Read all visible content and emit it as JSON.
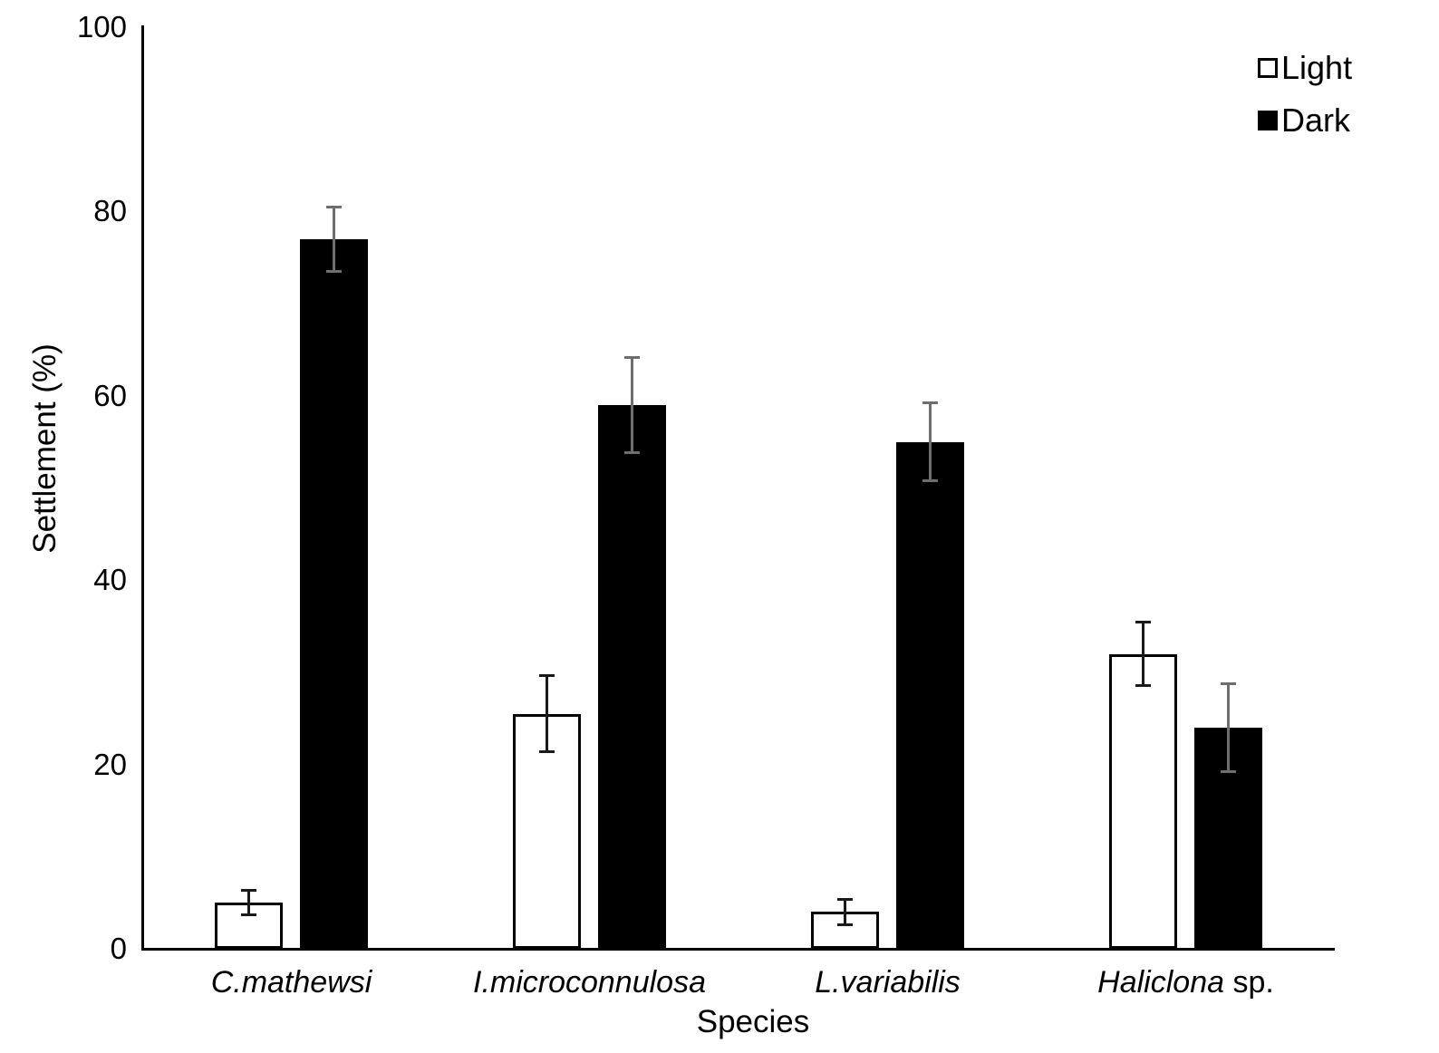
{
  "chart_data": {
    "type": "bar",
    "title": "",
    "xlabel": "Species",
    "ylabel": "Settlement (%)",
    "ylim": [
      0,
      100
    ],
    "yticks": [
      0,
      20,
      40,
      60,
      80,
      100
    ],
    "grid": false,
    "legend_position": "top-right",
    "legend_entries": [
      "Light",
      "Dark"
    ],
    "categories": [
      {
        "name": "C.mathewsi",
        "suffix": ""
      },
      {
        "name": "I.microconnulosa",
        "suffix": ""
      },
      {
        "name": "L.variabilis",
        "suffix": ""
      },
      {
        "name": "Haliclona",
        "suffix": " sp."
      }
    ],
    "series": [
      {
        "name": "Light",
        "fill": "#ffffff",
        "border": "#000000",
        "error_color": "#1a1a1a",
        "values": [
          5,
          25.5,
          4,
          32
        ],
        "errors": [
          1.3,
          4.1,
          1.4,
          3.4
        ]
      },
      {
        "name": "Dark",
        "fill": "#000000",
        "border": "#000000",
        "error_color": "#6e6e6e",
        "values": [
          77,
          59,
          55,
          24
        ],
        "errors": [
          3.5,
          5.2,
          4.2,
          4.8
        ]
      }
    ],
    "colors": {
      "background": "#ffffff",
      "axis": "#000000",
      "light_bar_fill": "#ffffff",
      "dark_bar_fill": "#000000",
      "dark_series_error": "#6e6e6e"
    }
  }
}
